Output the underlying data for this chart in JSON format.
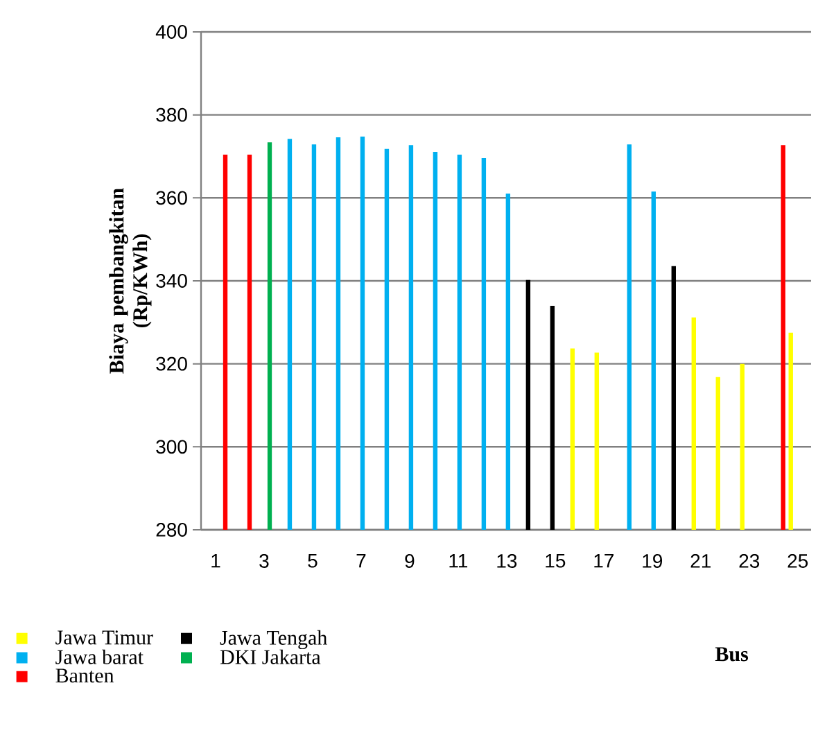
{
  "chart_data": {
    "type": "bar",
    "ylabel": "Biaya pembangkitan (Rp/KWh)",
    "xlabel": "Bus",
    "categories": [
      "1",
      null,
      "3",
      null,
      "5",
      null,
      "7",
      null,
      "9",
      null,
      "11",
      null,
      "13",
      null,
      "15",
      null,
      "17",
      null,
      "19",
      null,
      "21",
      null,
      "23",
      null,
      "25"
    ],
    "series": [
      {
        "name": "Jawa Timur",
        "color": "#ffff00",
        "values": [
          null,
          null,
          null,
          null,
          null,
          null,
          null,
          null,
          null,
          null,
          null,
          null,
          null,
          null,
          null,
          323.7,
          322.7,
          null,
          null,
          null,
          331.2,
          316.8,
          320.0,
          null,
          327.5
        ]
      },
      {
        "name": "Jawa Tengah",
        "color": "#000000",
        "values": [
          null,
          null,
          null,
          null,
          null,
          null,
          null,
          null,
          null,
          null,
          null,
          null,
          null,
          340.2,
          334.0,
          null,
          null,
          null,
          null,
          343.6,
          null,
          null,
          null,
          null,
          null
        ]
      },
      {
        "name": "Jawa barat",
        "color": "#00b0f0",
        "values": [
          null,
          null,
          null,
          374.2,
          372.9,
          374.6,
          374.8,
          371.8,
          372.7,
          371.1,
          370.4,
          369.6,
          361.0,
          null,
          null,
          null,
          null,
          372.9,
          361.5,
          null,
          null,
          null,
          null,
          null,
          null
        ]
      },
      {
        "name": "DKI Jakarta",
        "color": "#00b050",
        "values": [
          null,
          null,
          373.4,
          null,
          null,
          null,
          null,
          null,
          null,
          null,
          null,
          null,
          null,
          null,
          null,
          null,
          null,
          null,
          null,
          null,
          null,
          null,
          null,
          null,
          null
        ]
      },
      {
        "name": "Banten",
        "color": "#ff0000",
        "values": [
          370.4,
          370.4,
          null,
          null,
          null,
          null,
          null,
          null,
          null,
          null,
          null,
          null,
          null,
          null,
          null,
          null,
          null,
          null,
          null,
          null,
          null,
          null,
          null,
          372.7,
          null
        ]
      }
    ],
    "ylim": [
      280,
      400
    ],
    "yticks": [
      280,
      300,
      320,
      340,
      360,
      380,
      400
    ],
    "grid": "y",
    "legend": "bottom"
  }
}
